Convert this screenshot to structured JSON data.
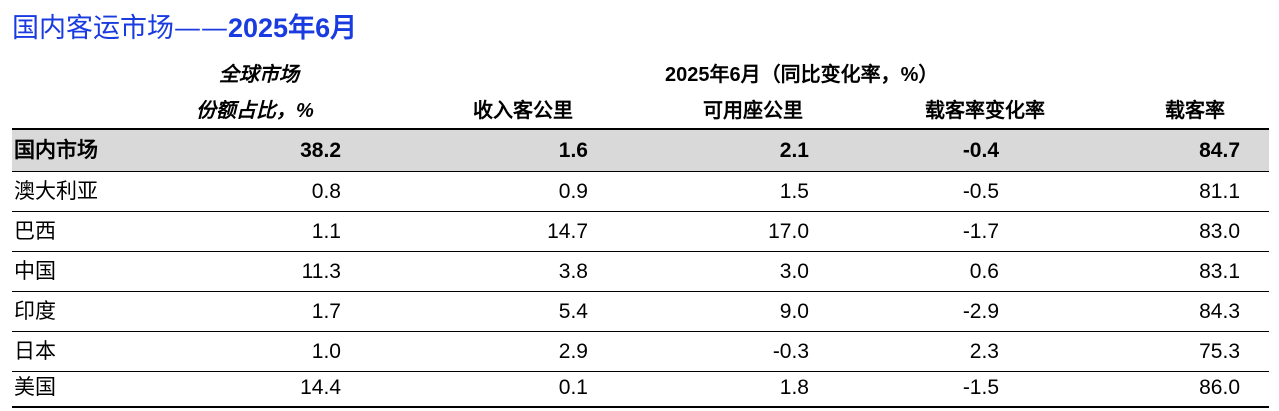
{
  "title": {
    "prefix": "国内客运市场——",
    "suffix": "2025年6月"
  },
  "header": {
    "share_line1": "全球市场",
    "share_line2": "份额占比，%",
    "period": "2025年6月（同比变化率，%）",
    "columns": [
      "收入客公里",
      "可用座公里",
      "载客率变化率",
      "载客率"
    ]
  },
  "rows": [
    {
      "name": "国内市场",
      "share": "38.2",
      "rpk": "1.6",
      "ask": "2.1",
      "plf_change": "-0.4",
      "plf": "84.7"
    },
    {
      "name": "澳大利亚",
      "share": "0.8",
      "rpk": "0.9",
      "ask": "1.5",
      "plf_change": "-0.5",
      "plf": "81.1"
    },
    {
      "name": "巴西",
      "share": "1.1",
      "rpk": "14.7",
      "ask": "17.0",
      "plf_change": "-1.7",
      "plf": "83.0"
    },
    {
      "name": "中国",
      "share": "11.3",
      "rpk": "3.8",
      "ask": "3.0",
      "plf_change": "0.6",
      "plf": "83.1"
    },
    {
      "name": "印度",
      "share": "1.7",
      "rpk": "5.4",
      "ask": "9.0",
      "plf_change": "-2.9",
      "plf": "84.3"
    },
    {
      "name": "日本",
      "share": "1.0",
      "rpk": "2.9",
      "ask": "-0.3",
      "plf_change": "2.3",
      "plf": "75.3"
    },
    {
      "name": "美国",
      "share": "14.4",
      "rpk": "0.1",
      "ask": "1.8",
      "plf_change": "-1.5",
      "plf": "86.0"
    }
  ],
  "colors": {
    "title": "#1a3be0",
    "highlight_band": "#d9d9d9"
  }
}
